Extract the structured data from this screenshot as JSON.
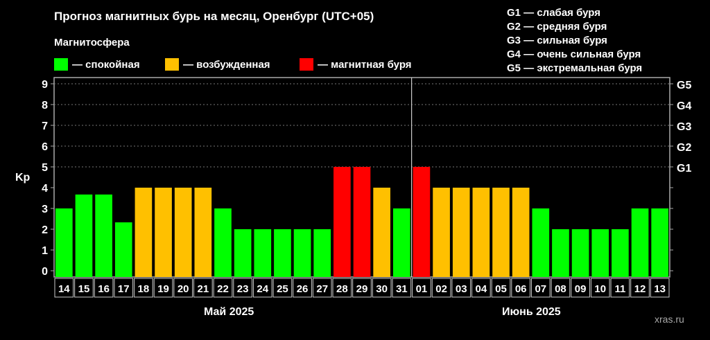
{
  "title": "Прогноз магнитных бурь на месяц, Оренбург (UTC+05)",
  "legend_title": "Магнитосфера",
  "legend": [
    {
      "label": "— спокойная",
      "color": "#00ff00"
    },
    {
      "label": "— возбужденная",
      "color": "#ffc000"
    },
    {
      "label": "— магнитная буря",
      "color": "#ff0000"
    }
  ],
  "g_scale": [
    "G1 — слабая буря",
    "G2 — средняя буря",
    "G3 — сильная буря",
    "G4 — очень сильная буря",
    "G5 — экстремальная буря"
  ],
  "watermark": "xras.ru",
  "chart_data": {
    "type": "bar",
    "ylabel": "Kp",
    "ylim": [
      -0.3,
      9.3
    ],
    "yticks": [
      0,
      1,
      2,
      3,
      4,
      5,
      6,
      7,
      8,
      9
    ],
    "right_ticks": {
      "5": "G1",
      "6": "G2",
      "7": "G3",
      "8": "G4",
      "9": "G5"
    },
    "grid": true,
    "months": [
      {
        "label": "Май 2025",
        "count": 18
      },
      {
        "label": "Июнь 2025",
        "count": 13
      }
    ],
    "categories": [
      "14",
      "15",
      "16",
      "17",
      "18",
      "19",
      "20",
      "21",
      "22",
      "23",
      "24",
      "25",
      "26",
      "27",
      "28",
      "29",
      "30",
      "31",
      "01",
      "02",
      "03",
      "04",
      "05",
      "06",
      "07",
      "08",
      "09",
      "10",
      "11",
      "12",
      "13"
    ],
    "values": [
      3,
      3.67,
      3.67,
      2.33,
      4,
      4,
      4,
      4,
      3,
      2,
      2,
      2,
      2,
      2,
      5,
      5,
      4,
      3,
      5,
      4,
      4,
      4,
      4,
      4,
      3,
      2,
      2,
      2,
      2,
      3,
      3
    ],
    "colors": {
      "quiet": "#00ff00",
      "active": "#ffc000",
      "storm": "#ff0000"
    }
  }
}
